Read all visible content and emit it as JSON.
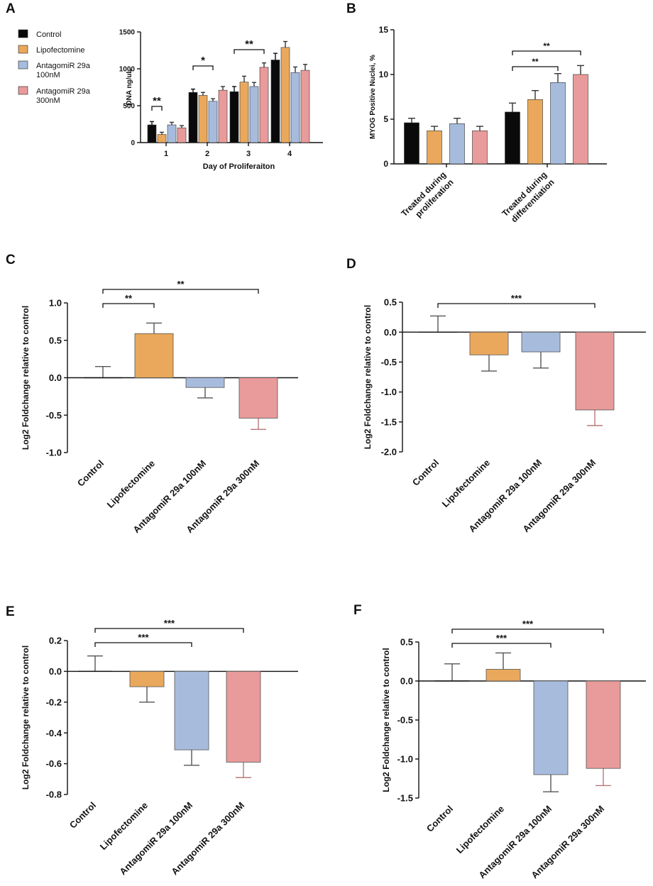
{
  "colors": {
    "Control": "#0a0a0a",
    "Lipofectomine": "#e9a85c",
    "Antagomir100": "#a7bbdd",
    "Antagomir300": "#e99a9a"
  },
  "chart_data": [
    {
      "panel": "A",
      "type": "bar",
      "ylabel": "DNA ng/uL",
      "xlabel": "Day of Proliferaiton",
      "ylim": [
        0,
        1500
      ],
      "yticks": [
        "0",
        "500",
        "1000",
        "1500"
      ],
      "categories": [
        "1",
        "2",
        "3",
        "4"
      ],
      "legend": {
        "placement": "left",
        "entries": [
          {
            "lines": [
              "Control"
            ],
            "color": "#0a0a0a"
          },
          {
            "lines": [
              "Lipofectomine"
            ],
            "color": "#e9a85c"
          },
          {
            "lines": [
              "AntagomiR 29a",
              "100nM"
            ],
            "color": "#a7bbdd"
          },
          {
            "lines": [
              "AntagomiR 29a",
              "300nM"
            ],
            "color": "#e99a9a"
          }
        ]
      },
      "series": [
        {
          "name": "Control",
          "color": "#0a0a0a",
          "values": [
            240,
            680,
            690,
            1120
          ],
          "errors": [
            45,
            45,
            70,
            90
          ]
        },
        {
          "name": "Lipofectomine",
          "color": "#e9a85c",
          "values": [
            110,
            640,
            820,
            1290
          ],
          "errors": [
            30,
            40,
            80,
            80
          ]
        },
        {
          "name": "AntagomiR 29a 100nM",
          "color": "#a7bbdd",
          "values": [
            240,
            560,
            760,
            950
          ],
          "errors": [
            35,
            35,
            55,
            75
          ]
        },
        {
          "name": "AntagomiR 29a 300nM",
          "color": "#e99a9a",
          "values": [
            200,
            710,
            1020,
            980
          ],
          "errors": [
            30,
            50,
            60,
            80
          ]
        }
      ],
      "significance": [
        {
          "group": 0,
          "from": 0,
          "to": 1,
          "label": "**"
        },
        {
          "group": 1,
          "from": 0,
          "to": 2,
          "label": "*"
        },
        {
          "group": 2,
          "from": 0,
          "to": 3,
          "label": "**"
        }
      ]
    },
    {
      "panel": "B",
      "type": "bar",
      "ylabel": "MYOG Positive Nuclei, %",
      "ylim": [
        0,
        15
      ],
      "yticks": [
        "0",
        "5",
        "10",
        "15"
      ],
      "categories": [
        "Treated during proliferation",
        "Treated during differentiation"
      ],
      "series": [
        {
          "name": "Control",
          "color": "#0a0a0a",
          "values": [
            4.6,
            5.8
          ],
          "errors": [
            0.5,
            1.0
          ]
        },
        {
          "name": "Lipofectomine",
          "color": "#e9a85c",
          "values": [
            3.7,
            7.2
          ],
          "errors": [
            0.5,
            1.0
          ]
        },
        {
          "name": "AntagomiR 29a 100nM",
          "color": "#a7bbdd",
          "values": [
            4.5,
            9.1
          ],
          "errors": [
            0.6,
            1.0
          ]
        },
        {
          "name": "AntagomiR 29a 300nM",
          "color": "#e99a9a",
          "values": [
            3.7,
            10.0
          ],
          "errors": [
            0.5,
            1.0
          ]
        }
      ],
      "significance": [
        {
          "group": 1,
          "from": 0,
          "to": 2,
          "label": "**"
        },
        {
          "group": 1,
          "from": 0,
          "to": 3,
          "label": "**"
        }
      ]
    },
    {
      "panel": "C",
      "type": "bar",
      "ylabel": "Log2 Foldchange relative to control",
      "ylim": [
        -1.0,
        1.0
      ],
      "yticks": [
        "-1.0",
        "-0.5",
        "0.0",
        "0.5",
        "1.0"
      ],
      "categories": [
        "Control",
        "Lipofectomine",
        "AntagomiR 29a 100nM",
        "AntagomiR 29a 300nM"
      ],
      "colors": [
        "#0a0a0a",
        "#e9a85c",
        "#a7bbdd",
        "#e99a9a"
      ],
      "values": [
        0.0,
        0.59,
        -0.13,
        -0.54
      ],
      "errors": [
        0.15,
        0.14,
        0.14,
        0.15
      ],
      "significance": [
        {
          "from": 0,
          "to": 1,
          "label": "**"
        },
        {
          "from": 0,
          "to": 3,
          "label": "**"
        }
      ]
    },
    {
      "panel": "D",
      "type": "bar",
      "ylabel": "Log2 Foldchange relative to control",
      "ylim": [
        -2.0,
        0.5
      ],
      "yticks": [
        "-2.0",
        "-1.5",
        "-1.0",
        "-0.5",
        "0.0",
        "0.5"
      ],
      "categories": [
        "Control",
        "Lipofectomine",
        "AntagomiR 29a 100nM",
        "AntagomiR 29a 300nM"
      ],
      "colors": [
        "#0a0a0a",
        "#e9a85c",
        "#a7bbdd",
        "#e99a9a"
      ],
      "values": [
        0.0,
        -0.38,
        -0.33,
        -1.3
      ],
      "errors": [
        0.27,
        0.27,
        0.27,
        0.26
      ],
      "significance": [
        {
          "from": 0,
          "to": 3,
          "label": "***"
        }
      ]
    },
    {
      "panel": "E",
      "type": "bar",
      "ylabel": "Log2 Foldchange relative to control",
      "ylim": [
        -0.8,
        0.2
      ],
      "yticks": [
        "-0.8",
        "-0.6",
        "-0.4",
        "-0.2",
        "0.0",
        "0.2"
      ],
      "categories": [
        "Control",
        "Lipofectomine",
        "AntagomiR 29a 100nM",
        "AntagomiR 29a 300nM"
      ],
      "colors": [
        "#0a0a0a",
        "#e9a85c",
        "#a7bbdd",
        "#e99a9a"
      ],
      "values": [
        0.0,
        -0.1,
        -0.51,
        -0.59
      ],
      "errors": [
        0.1,
        0.1,
        0.1,
        0.1
      ],
      "significance": [
        {
          "from": 0,
          "to": 2,
          "label": "***"
        },
        {
          "from": 0,
          "to": 3,
          "label": "***"
        }
      ]
    },
    {
      "panel": "F",
      "type": "bar",
      "ylabel": "Log2 Foldchange relative to control",
      "ylim": [
        -1.5,
        0.5
      ],
      "yticks": [
        "-1.5",
        "-1.0",
        "-0.5",
        "0.0",
        "0.5"
      ],
      "categories": [
        "Control",
        "Lipofectomine",
        "AntagomiR 29a 100nM",
        "AntagomiR 29a 300nM"
      ],
      "colors": [
        "#0a0a0a",
        "#e9a85c",
        "#a7bbdd",
        "#e99a9a"
      ],
      "values": [
        0.0,
        0.15,
        -1.2,
        -1.12
      ],
      "errors": [
        0.22,
        0.21,
        0.22,
        0.22
      ],
      "significance": [
        {
          "from": 0,
          "to": 2,
          "label": "***"
        },
        {
          "from": 0,
          "to": 3,
          "label": "***"
        }
      ]
    }
  ]
}
